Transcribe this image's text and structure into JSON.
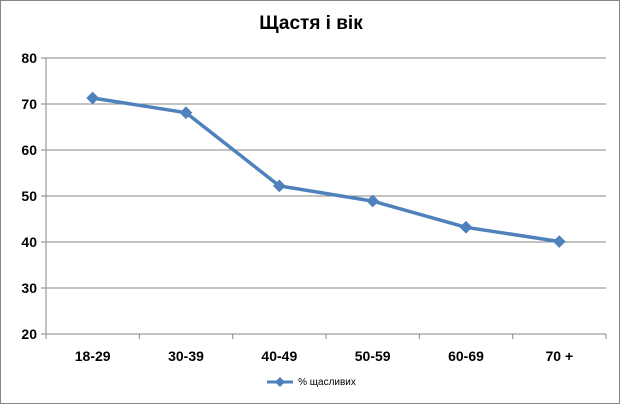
{
  "chart_data": {
    "type": "line",
    "title": "Щастя і вік",
    "xlabel": "",
    "ylabel": "",
    "categories": [
      "18-29",
      "30-39",
      "40-49",
      "50-59",
      "60-69",
      "70 +"
    ],
    "ylim": [
      20,
      80
    ],
    "yticks": [
      20,
      30,
      40,
      50,
      60,
      70,
      80
    ],
    "grid": true,
    "legend_position": "bottom",
    "series": [
      {
        "name": "% щасливих",
        "values": [
          71.3,
          68.1,
          52.2,
          48.9,
          43.2,
          40.1
        ],
        "color": "#4F81BD"
      }
    ]
  }
}
